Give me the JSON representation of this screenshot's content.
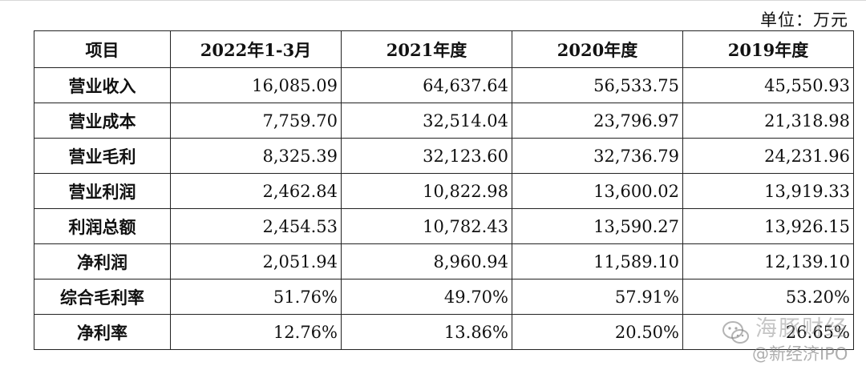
{
  "unit_label": "单位：万元",
  "table": {
    "headers": [
      "项目",
      "2022年1-3月",
      "2021年度",
      "2020年度",
      "2019年度"
    ],
    "rows": [
      {
        "item": "营业收入",
        "values": [
          "16,085.09",
          "64,637.64",
          "56,533.75",
          "45,550.93"
        ]
      },
      {
        "item": "营业成本",
        "values": [
          "7,759.70",
          "32,514.04",
          "23,796.97",
          "21,318.98"
        ]
      },
      {
        "item": "营业毛利",
        "values": [
          "8,325.39",
          "32,123.60",
          "32,736.79",
          "24,231.96"
        ]
      },
      {
        "item": "营业利润",
        "values": [
          "2,462.84",
          "10,822.98",
          "13,600.02",
          "13,919.33"
        ]
      },
      {
        "item": "利润总额",
        "values": [
          "2,454.53",
          "10,782.43",
          "13,590.27",
          "13,926.15"
        ]
      },
      {
        "item": "净利润",
        "values": [
          "2,051.94",
          "8,960.94",
          "11,589.10",
          "12,139.10"
        ]
      },
      {
        "item": "综合毛利率",
        "values": [
          "51.76%",
          "49.70%",
          "57.91%",
          "53.20%"
        ]
      },
      {
        "item": "净利率",
        "values": [
          "12.76%",
          "13.86%",
          "20.50%",
          "26.65%"
        ]
      }
    ]
  },
  "watermark": {
    "line1": "海豚财经",
    "line2": "@新经济IPO",
    "icon": "wechat-logo-icon"
  }
}
